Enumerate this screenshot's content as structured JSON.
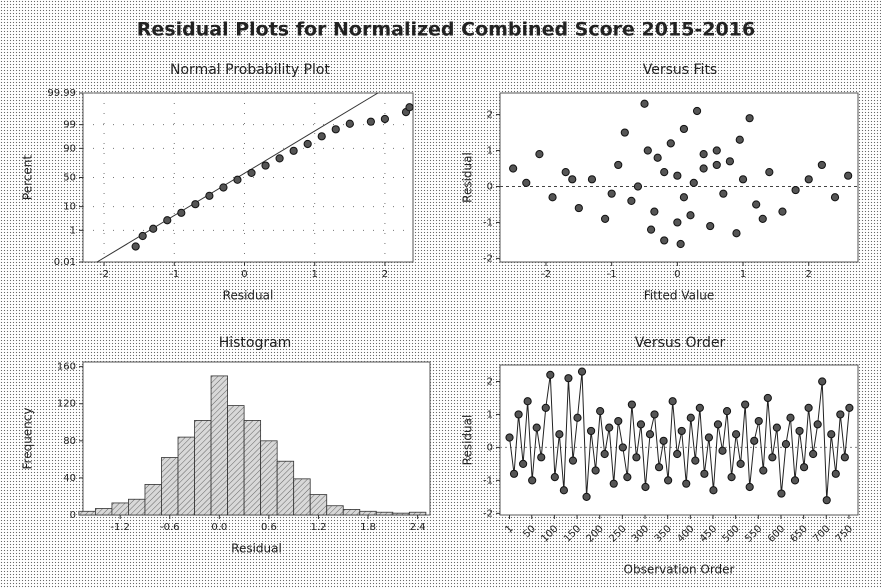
{
  "title": "Residual Plots for Normalized Combined Score 2015-2016",
  "chart_data": [
    {
      "type": "probability",
      "title": "Normal Probability Plot",
      "xlabel": "Residual",
      "ylabel": "Percent",
      "x": [
        -1.55,
        -1.45,
        -1.3,
        -1.1,
        -0.9,
        -0.7,
        -0.5,
        -0.3,
        -0.1,
        0.1,
        0.3,
        0.5,
        0.7,
        0.9,
        1.1,
        1.3,
        1.5,
        1.8,
        2.0,
        2.3,
        2.35
      ],
      "values": [
        0.12,
        0.5,
        1.2,
        3,
        6,
        12,
        21,
        33,
        46,
        58,
        70,
        80,
        88,
        93,
        96.5,
        98.3,
        99.1,
        99.3,
        99.5,
        99.8,
        99.9
      ],
      "fit_line": {
        "x": [
          -2.1,
          1.9
        ],
        "values": [
          0.01,
          99.99
        ]
      },
      "xlim": [
        -2.3,
        2.4
      ],
      "xticks": [
        -2,
        -1,
        0,
        1,
        2
      ],
      "ylim": [
        0.01,
        99.99
      ],
      "yticks": [
        0.01,
        1,
        10,
        50,
        90,
        99,
        99.99
      ],
      "yscale": "probability",
      "grid": true,
      "color": "#555555"
    },
    {
      "type": "scatter",
      "title": "Versus Fits",
      "xlabel": "Fitted Value",
      "ylabel": "Residual",
      "x": [
        -2.5,
        -2.3,
        -2.1,
        -1.9,
        -1.7,
        -1.5,
        -1.3,
        -1.1,
        -0.9,
        -0.8,
        -0.7,
        -0.5,
        -0.4,
        -0.3,
        -0.2,
        -0.1,
        0,
        0.05,
        0.1,
        0.2,
        0.3,
        0.4,
        0.5,
        0.6,
        0.7,
        0.8,
        0.9,
        1.0,
        1.1,
        1.2,
        1.4,
        1.6,
        1.8,
        2.0,
        2.2,
        2.4,
        2.6,
        -0.6,
        -0.2,
        0.1,
        0.4,
        -1.0,
        -0.35,
        0.25,
        0.95,
        -1.6,
        1.3,
        -0.45,
        0.6,
        0.0
      ],
      "values": [
        0.5,
        0.1,
        0.9,
        -0.3,
        0.4,
        -0.6,
        0.2,
        -0.9,
        0.6,
        1.5,
        -0.4,
        2.3,
        -1.2,
        0.8,
        -1.5,
        1.2,
        0.3,
        -1.6,
        1.6,
        -0.8,
        2.1,
        0.5,
        -1.1,
        1.0,
        -0.2,
        0.7,
        -1.3,
        0.2,
        1.9,
        -0.5,
        0.4,
        -0.7,
        -0.1,
        0.2,
        0.6,
        -0.3,
        0.3,
        0.0,
        0.4,
        -0.3,
        0.9,
        -0.2,
        -0.7,
        0.1,
        1.3,
        0.2,
        -0.9,
        1.0,
        0.6,
        -1.0
      ],
      "xlim": [
        -2.7,
        2.75
      ],
      "xticks": [
        -2,
        -1,
        0,
        1,
        2
      ],
      "ylim": [
        -2.1,
        2.6
      ],
      "yticks": [
        -2,
        -1,
        0,
        1,
        2
      ],
      "reference_line": 0,
      "color": "#555555"
    },
    {
      "type": "histogram",
      "title": "Histogram",
      "xlabel": "Residual",
      "ylabel": "Frequency",
      "bins": [
        -1.7,
        -1.5,
        -1.3,
        -1.1,
        -0.9,
        -0.7,
        -0.5,
        -0.3,
        -0.1,
        0.1,
        0.3,
        0.5,
        0.7,
        0.9,
        1.1,
        1.3,
        1.5,
        1.7,
        1.9,
        2.1,
        2.3,
        2.5
      ],
      "values": [
        4,
        7,
        13,
        17,
        33,
        62,
        84,
        102,
        150,
        118,
        102,
        80,
        58,
        39,
        22,
        10,
        6,
        4,
        3,
        2,
        3
      ],
      "xlim": [
        -1.65,
        2.55
      ],
      "xticks": [
        -1.2,
        -0.6,
        {
          "value": 0,
          "label": "0.0"
        },
        0.6,
        1.2,
        1.8,
        2.4
      ],
      "ylim": [
        0,
        165
      ],
      "yticks": [
        0,
        40,
        80,
        120,
        160
      ],
      "color": "#bbbbbb"
    },
    {
      "type": "line",
      "title": "Versus Order",
      "xlabel": "Observation Order",
      "ylabel": "Residual",
      "x": [
        1,
        11,
        21,
        31,
        41,
        51,
        61,
        71,
        81,
        91,
        101,
        111,
        121,
        131,
        141,
        151,
        161,
        171,
        181,
        191,
        201,
        211,
        221,
        231,
        241,
        251,
        261,
        271,
        281,
        291,
        301,
        311,
        321,
        331,
        341,
        351,
        361,
        371,
        381,
        391,
        401,
        411,
        421,
        431,
        441,
        451,
        461,
        471,
        481,
        491,
        501,
        511,
        521,
        531,
        541,
        551,
        561,
        571,
        581,
        591,
        601,
        611,
        621,
        631,
        641,
        651,
        661,
        671,
        681,
        691,
        701,
        711,
        721,
        731,
        741,
        751
      ],
      "values": [
        0.3,
        -0.8,
        1.0,
        -0.5,
        1.4,
        -1.0,
        0.6,
        -0.3,
        1.2,
        2.2,
        -0.9,
        0.4,
        -1.3,
        2.1,
        -0.4,
        0.9,
        2.3,
        -1.5,
        0.5,
        -0.7,
        1.1,
        -0.2,
        0.6,
        -1.1,
        0.8,
        0.0,
        -0.9,
        1.3,
        -0.3,
        0.7,
        -1.2,
        0.4,
        1.0,
        -0.6,
        0.2,
        -1.0,
        1.4,
        -0.2,
        0.5,
        -1.1,
        0.9,
        -0.4,
        1.2,
        -0.8,
        0.3,
        -1.3,
        0.7,
        -0.1,
        1.1,
        -0.9,
        0.4,
        -0.5,
        1.3,
        -1.2,
        0.2,
        0.8,
        -0.7,
        1.5,
        -0.3,
        0.6,
        -1.4,
        0.1,
        0.9,
        -1.0,
        0.5,
        -0.6,
        1.2,
        -0.2,
        0.7,
        2.0,
        -1.6,
        0.4,
        -0.8,
        1.0,
        -0.3,
        1.2
      ],
      "xlim": [
        -20,
        770
      ],
      "xticks": [
        1,
        50,
        100,
        150,
        200,
        250,
        300,
        350,
        400,
        450,
        500,
        550,
        600,
        650,
        700,
        750
      ],
      "ylim": [
        -2.05,
        2.5
      ],
      "yticks": [
        -2,
        -1,
        0,
        1,
        2
      ],
      "color": "#555555"
    }
  ]
}
